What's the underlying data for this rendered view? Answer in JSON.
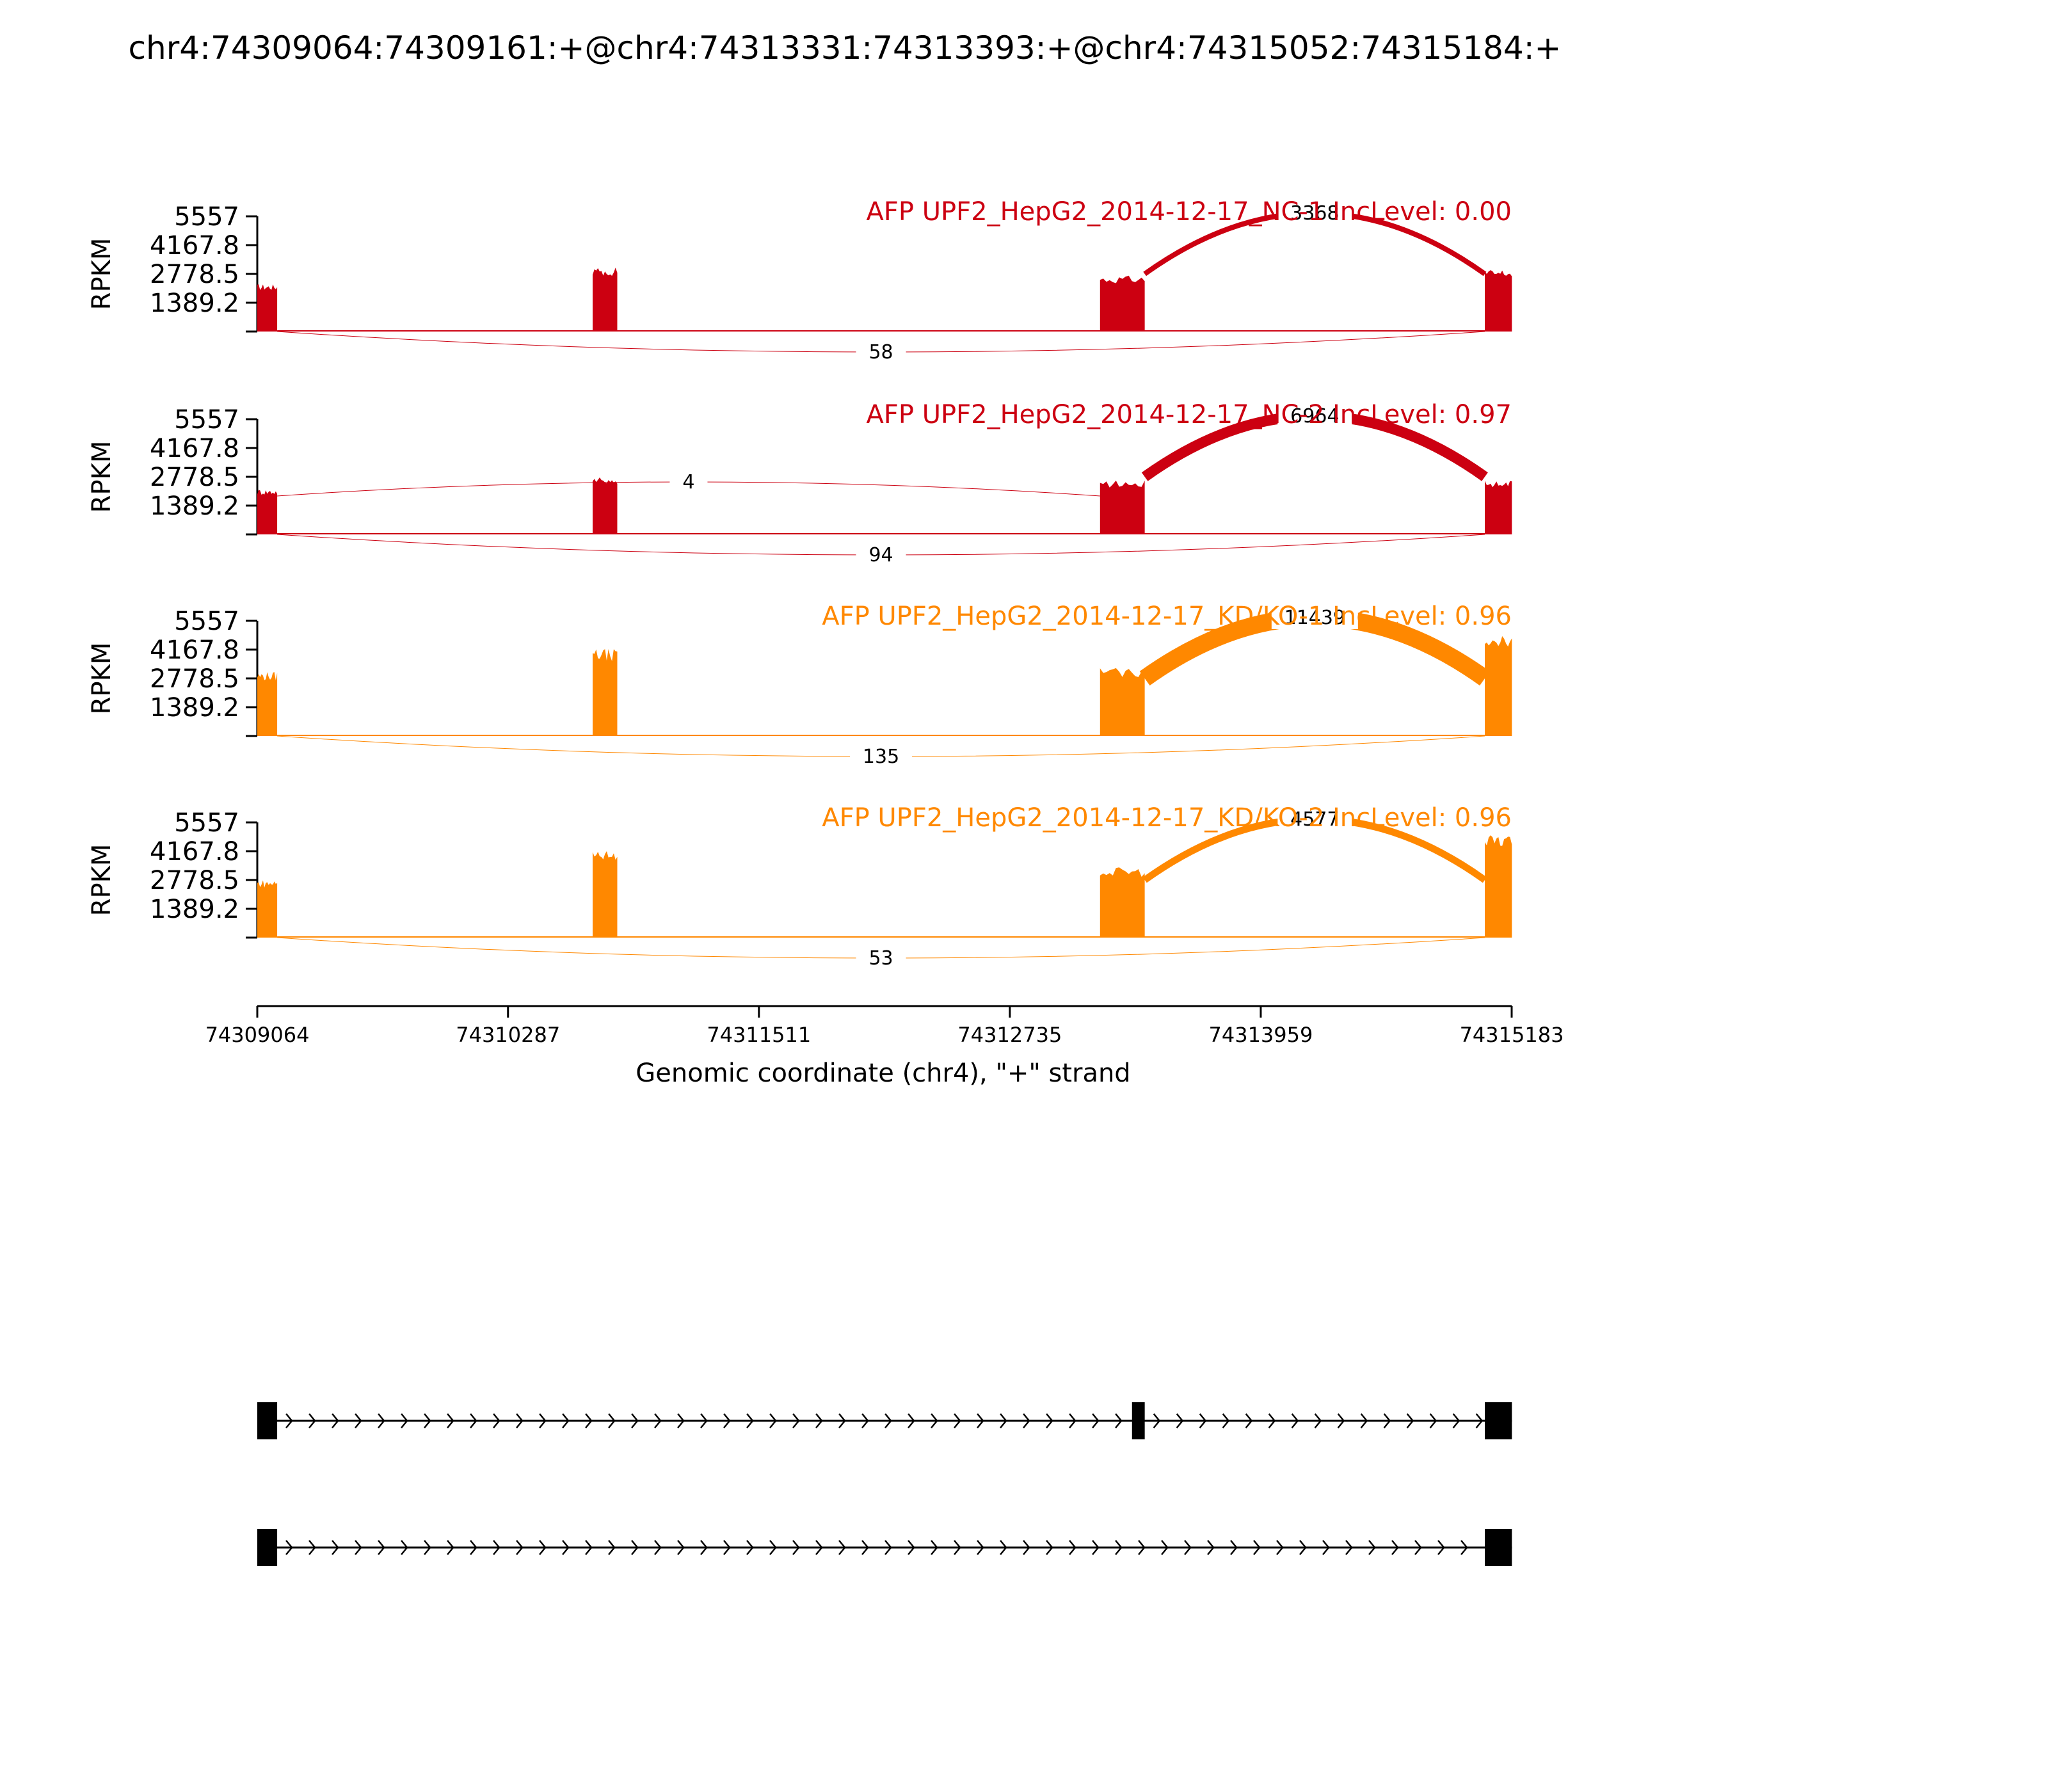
{
  "title": "chr4:74309064:74309161:+@chr4:74313331:74313393:+@chr4:74315052:74315184:+",
  "colors": {
    "nc": "#cc0011",
    "kd": "#ff8800",
    "axis": "#000000"
  },
  "chart_data": {
    "type": "area",
    "title": "chr4:74309064:74309161:+@chr4:74313331:74313393:+@chr4:74315052:74315184:+",
    "ylabel": "RPKM",
    "xlabel": "Genomic coordinate (chr4), \"+\" strand",
    "xlim": [
      74309064,
      74315183
    ],
    "ylim": [
      0,
      5557
    ],
    "yticks": [
      "5557",
      "4167.8",
      "2778.5",
      "1389.2"
    ],
    "yticks_values": [
      5557,
      4167.8,
      2778.5,
      1389.2
    ],
    "xticks": [
      "74309064",
      "74310287",
      "74311511",
      "74312735",
      "74313959",
      "74315183"
    ],
    "xticks_values": [
      74309064,
      74310287,
      74311511,
      74312735,
      74313959,
      74315183
    ],
    "exon_blocks": [
      {
        "start": 74309064,
        "end": 74309161
      },
      {
        "start": 74310700,
        "end": 74310820
      },
      {
        "start": 74313175,
        "end": 74313393
      },
      {
        "start": 74315052,
        "end": 74315184
      }
    ],
    "series": [
      {
        "name": "AFP UPF2_HepG2_2014-12-17_NC-1 IncLevel: 0.00",
        "group": "nc",
        "exon_heights": [
          2300,
          3100,
          2700,
          3000
        ],
        "junctions": [
          {
            "from": 74313393,
            "to": 74315052,
            "count": "3368",
            "side": "above"
          },
          {
            "from": 74309161,
            "to": 74315052,
            "count": "58",
            "side": "below"
          }
        ]
      },
      {
        "name": "AFP UPF2_HepG2_2014-12-17_NC-2 IncLevel: 0.97",
        "group": "nc",
        "exon_heights": [
          2200,
          2800,
          2600,
          2600
        ],
        "junctions": [
          {
            "from": 74309161,
            "to": 74313175,
            "count": "4",
            "side": "above"
          },
          {
            "from": 74313393,
            "to": 74315052,
            "count": "6964",
            "side": "above"
          },
          {
            "from": 74309161,
            "to": 74315052,
            "count": "94",
            "side": "below"
          }
        ]
      },
      {
        "name": "AFP UPF2_HepG2_2014-12-17_KD/KO-1 IncLevel: 0.96",
        "group": "kd",
        "exon_heights": [
          3100,
          4200,
          3300,
          5000
        ],
        "junctions": [
          {
            "from": 74313393,
            "to": 74315052,
            "count": "11439",
            "side": "above"
          },
          {
            "from": 74309161,
            "to": 74315052,
            "count": "135",
            "side": "below"
          }
        ]
      },
      {
        "name": "AFP UPF2_HepG2_2014-12-17_KD/KO-2 IncLevel: 0.96",
        "group": "kd",
        "exon_heights": [
          2800,
          4200,
          3400,
          5000
        ],
        "junctions": [
          {
            "from": 74313393,
            "to": 74315052,
            "count": "4577",
            "side": "above"
          },
          {
            "from": 74309161,
            "to": 74315052,
            "count": "53",
            "side": "below"
          }
        ]
      }
    ],
    "isoforms": [
      {
        "exons": [
          [
            74309064,
            74309161
          ],
          [
            74313331,
            74313393
          ],
          [
            74315052,
            74315184
          ]
        ]
      },
      {
        "exons": [
          [
            74309064,
            74309161
          ],
          [
            74315052,
            74315184
          ]
        ]
      }
    ]
  }
}
